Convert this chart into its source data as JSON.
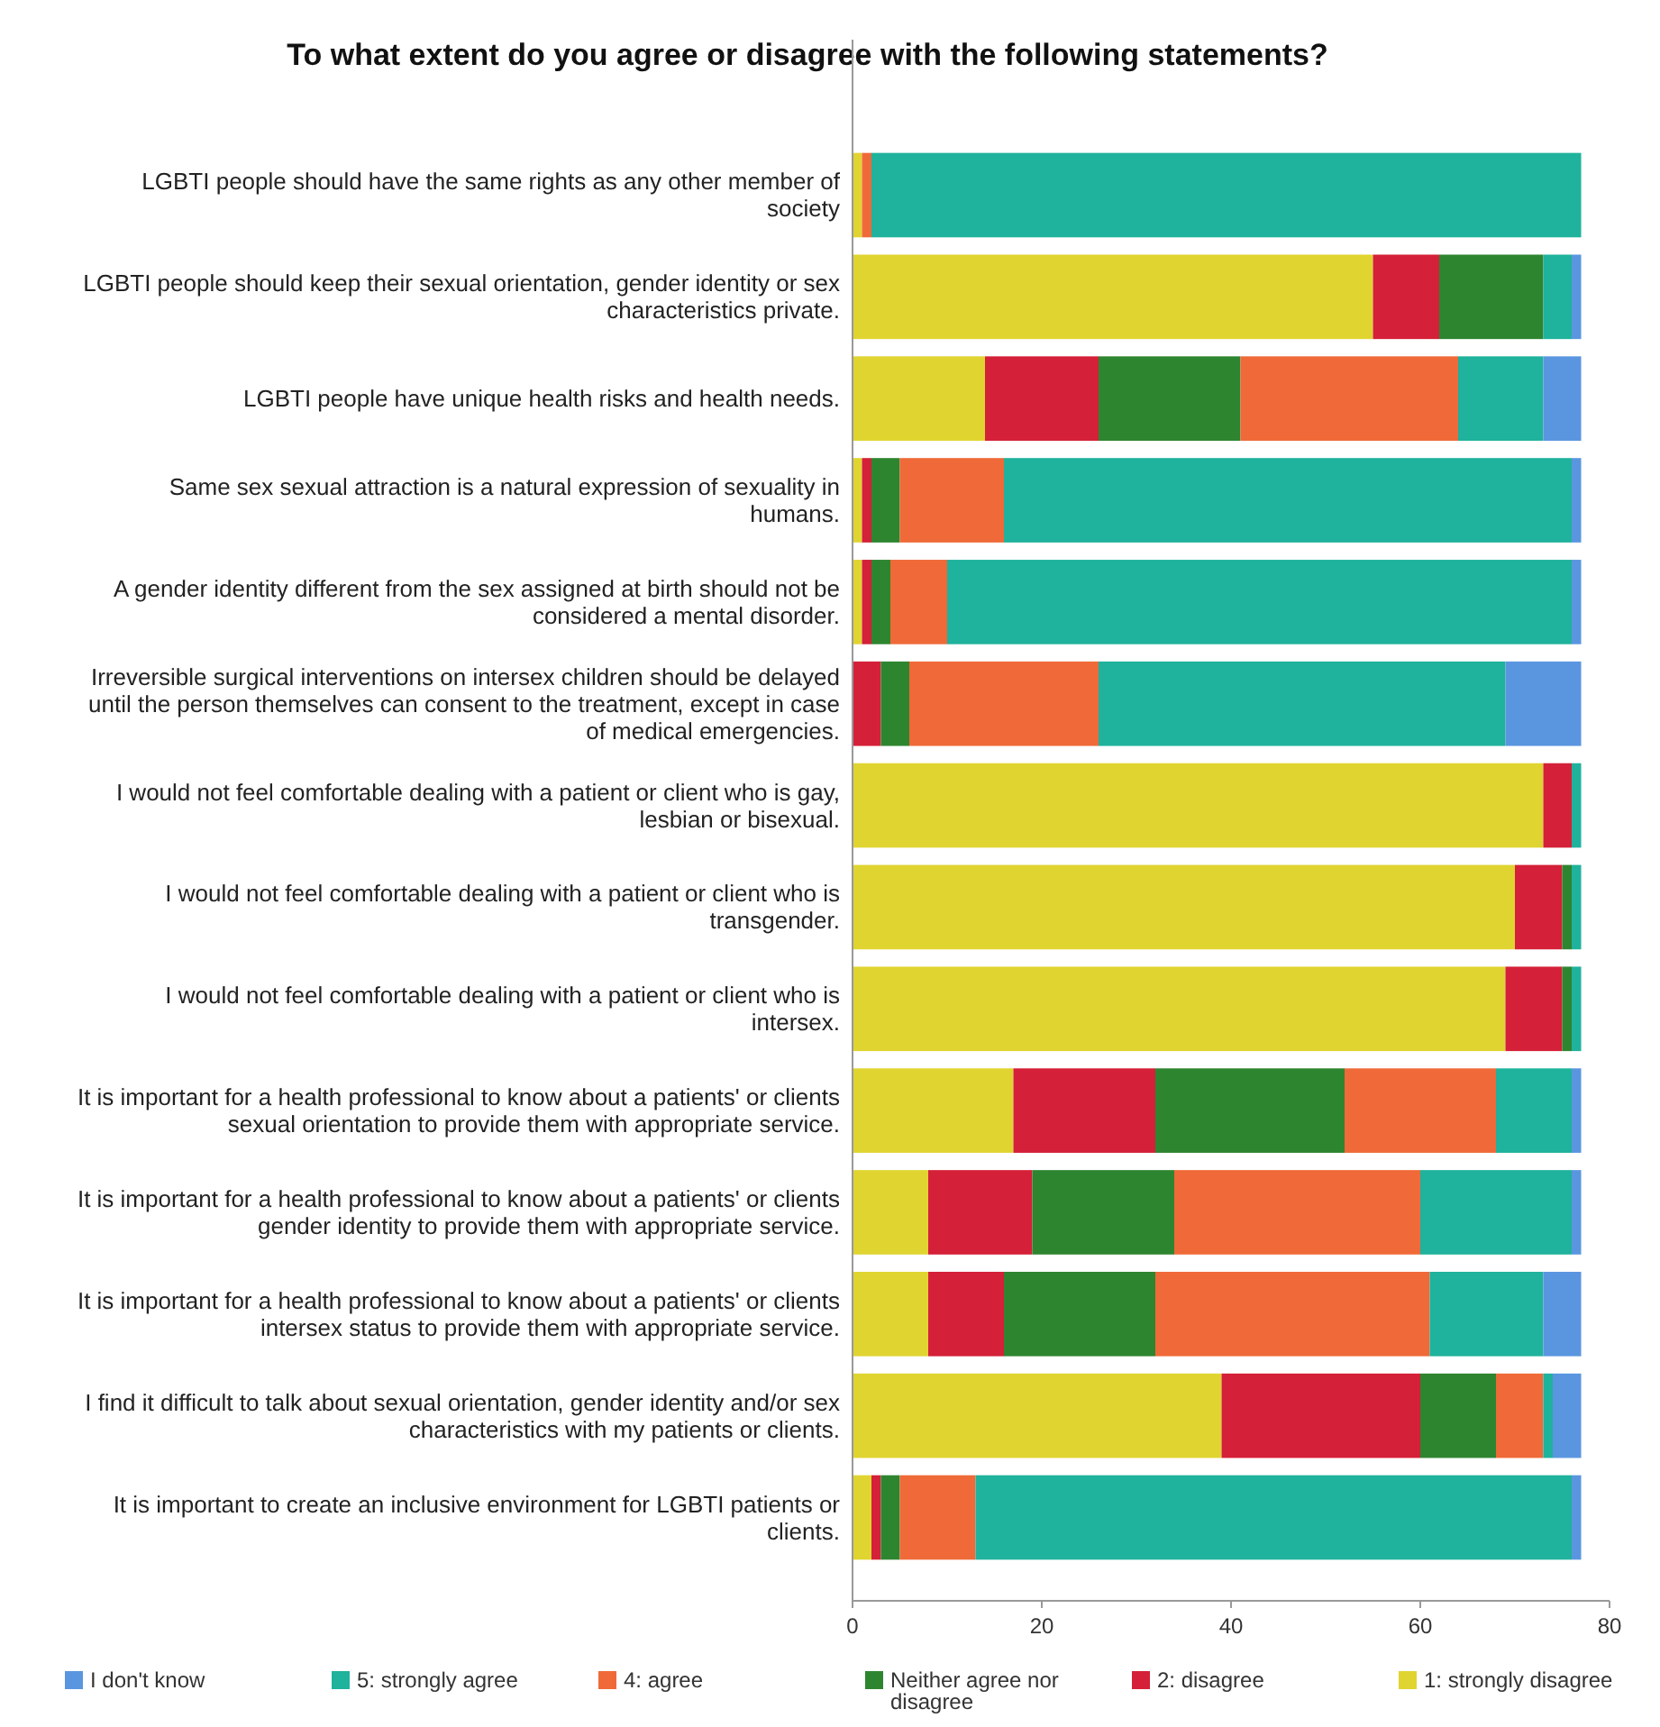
{
  "chart_data": {
    "type": "bar",
    "orientation": "horizontal",
    "stacked": true,
    "title": "To what extent do you agree or disagree with the following statements?",
    "categories": [
      "LGBTI people should have the same rights as any other member of society",
      "LGBTI people should keep their sexual orientation, gender identity or sex characteristics private.",
      "LGBTI people have unique health risks and health needs.",
      "Same sex sexual attraction is a natural expression of sexuality in humans.",
      "A gender identity different from the sex assigned at birth should not be considered a mental disorder.",
      "Irreversible surgical interventions on intersex children should be delayed until the person themselves can consent to the treatment, except in case of medical emergencies.",
      "I would not feel comfortable dealing with a patient or client who is gay, lesbian or bisexual.",
      "I would not feel comfortable dealing with a patient or client who is transgender.",
      "I would not feel comfortable dealing with a patient or client who is intersex.",
      "It is important for a health professional to know about a patients' or clients sexual orientation to provide them with appropriate service.",
      "It is important for a health professional to know about a patients' or clients gender identity to provide them with appropriate service.",
      "It is important for a health professional to know about a patients' or clients intersex status to provide them with appropriate service.",
      "I find it difficult to talk about sexual orientation, gender identity and/or sex characteristics with my patients or clients.",
      "It is important to create an inclusive environment for LGBTI patients or clients."
    ],
    "series": [
      {
        "name": "1: strongly disagree",
        "color": "#e0d431",
        "values": [
          1,
          55,
          14,
          1,
          1,
          0,
          73,
          70,
          69,
          17,
          8,
          8,
          39,
          2
        ]
      },
      {
        "name": "2: disagree",
        "color": "#d42038",
        "values": [
          0,
          7,
          12,
          1,
          1,
          3,
          3,
          5,
          6,
          15,
          11,
          8,
          21,
          1
        ]
      },
      {
        "name": "Neither agree nor disagree",
        "color": "#2e8530",
        "values": [
          0,
          11,
          15,
          3,
          2,
          3,
          0,
          1,
          1,
          20,
          15,
          16,
          8,
          2
        ]
      },
      {
        "name": "4: agree",
        "color": "#ef6a38",
        "values": [
          1,
          0,
          23,
          11,
          6,
          20,
          0,
          0,
          0,
          16,
          26,
          29,
          5,
          8
        ]
      },
      {
        "name": "5: strongly agree",
        "color": "#1fb29c",
        "values": [
          75,
          3,
          9,
          60,
          66,
          43,
          1,
          1,
          1,
          8,
          16,
          12,
          1,
          63
        ]
      },
      {
        "name": "I don't know",
        "color": "#5a96e0",
        "values": [
          0,
          1,
          4,
          1,
          1,
          8,
          0,
          0,
          0,
          1,
          1,
          4,
          3,
          1
        ]
      }
    ],
    "xlim": [
      0,
      80
    ],
    "xticks": [
      0,
      20,
      40,
      60,
      80
    ],
    "legend": "bottom"
  }
}
